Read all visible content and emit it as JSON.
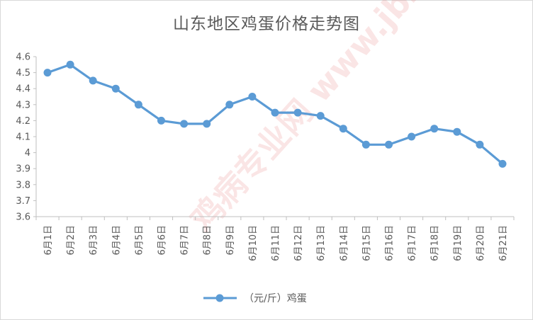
{
  "chart_data": {
    "type": "line",
    "title": "山东地区鸡蛋价格走势图",
    "categories": [
      "6月1日",
      "6月2日",
      "6月3日",
      "6月4日",
      "6月5日",
      "6月6日",
      "6月7日",
      "6月8日",
      "6月9日",
      "6月10日",
      "6月11日",
      "6月12日",
      "6月13日",
      "6月14日",
      "6月15日",
      "6月16日",
      "6月17日",
      "6月18日",
      "6月19日",
      "6月20日",
      "6月21日"
    ],
    "series": [
      {
        "name": "（元/斤）鸡蛋",
        "color": "#5b9bd5",
        "values": [
          4.5,
          4.55,
          4.45,
          4.4,
          4.3,
          4.2,
          4.18,
          4.18,
          4.3,
          4.35,
          4.25,
          4.25,
          4.23,
          4.15,
          4.05,
          4.05,
          4.1,
          4.15,
          4.13,
          4.05,
          3.93
        ]
      }
    ],
    "yticks": [
      "3.6",
      "3.7",
      "3.8",
      "3.9",
      "4",
      "4.1",
      "4.2",
      "4.3",
      "4.4",
      "4.5",
      "4.6"
    ],
    "ylim": [
      3.6,
      4.6
    ],
    "grid": false,
    "legend": "bottom"
  },
  "watermark": {
    "text": "鸡病专业网 www.jbzyw.com",
    "color": "#e04040"
  }
}
